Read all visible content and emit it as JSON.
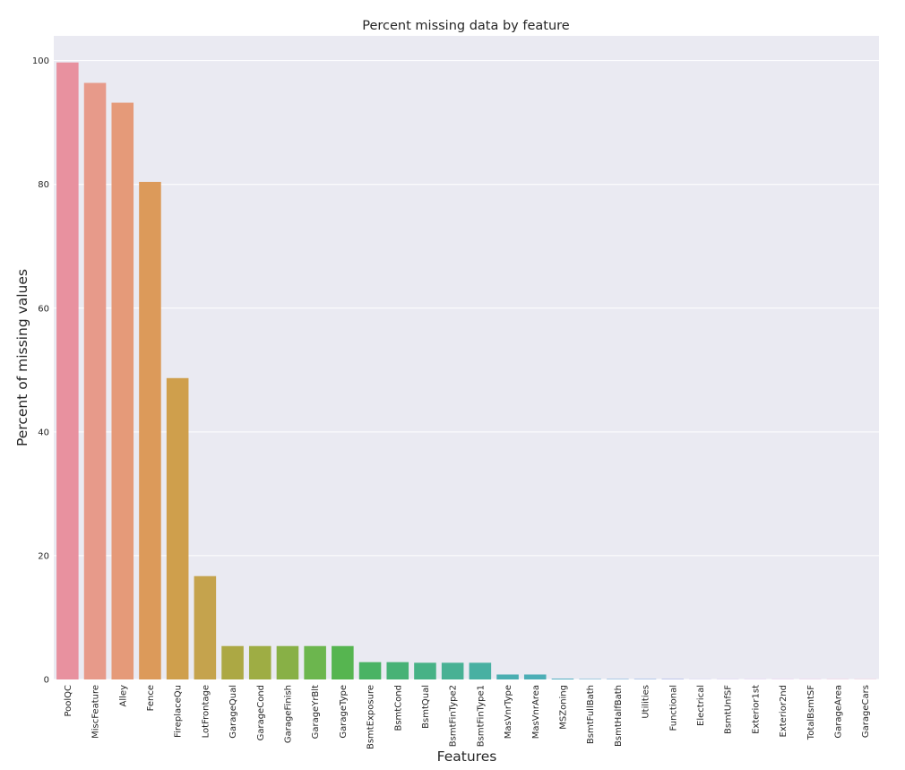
{
  "chart_data": {
    "type": "bar",
    "title": "Percent missing data by feature",
    "xlabel": "Features",
    "ylabel": "Percent of missing values",
    "ylim": [
      0,
      104
    ],
    "yticks": [
      "0",
      "20",
      "40",
      "60",
      "80",
      "100"
    ],
    "grid": true,
    "categories": [
      "PoolQC",
      "MiscFeature",
      "Alley",
      "Fence",
      "FireplaceQu",
      "LotFrontage",
      "GarageQual",
      "GarageCond",
      "GarageFinish",
      "GarageYrBlt",
      "GarageType",
      "BsmtExposure",
      "BsmtCond",
      "BsmtQual",
      "BsmtFinType2",
      "BsmtFinType1",
      "MasVnrType",
      "MasVnrArea",
      "MSZoning",
      "BsmtFullBath",
      "BsmtHalfBath",
      "Utilities",
      "Functional",
      "Electrical",
      "BsmtUnfSF",
      "Exterior1st",
      "Exterior2nd",
      "TotalBsmtSF",
      "GarageArea",
      "GarageCars"
    ],
    "values": [
      99.7,
      96.4,
      93.2,
      80.4,
      48.7,
      16.7,
      5.4,
      5.4,
      5.4,
      5.4,
      5.4,
      2.8,
      2.8,
      2.7,
      2.7,
      2.7,
      0.8,
      0.8,
      0.14,
      0.07,
      0.07,
      0.07,
      0.07,
      0.03,
      0.03,
      0.03,
      0.03,
      0.03,
      0.03,
      0.03
    ],
    "colors": [
      "#e8919f",
      "#e79a8a",
      "#e59a79",
      "#dc9a5a",
      "#cf9f4c",
      "#c5a34d",
      "#aca844",
      "#9ead44",
      "#88b046",
      "#6cb64e",
      "#56b550",
      "#4ab364",
      "#48b276",
      "#47b286",
      "#48b194",
      "#48b0a2",
      "#4aaeb1",
      "#4caeb6",
      "#52acc1",
      "#5aa9cd",
      "#69a6d8",
      "#7ea2e1",
      "#929ee5",
      "#a79ae8",
      "#b896e9",
      "#c98fe8",
      "#d98de2",
      "#e28ad5",
      "#e88dc6",
      "#ea8fb6"
    ]
  }
}
